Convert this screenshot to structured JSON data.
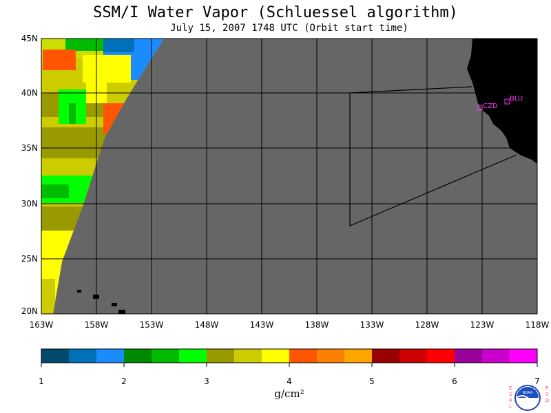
{
  "title": "SSM/I Water Vapor (Schluessel algorithm)",
  "subtitle": "July 15, 2007  1748 UTC  (Orbit start time)",
  "units": "g/cm²",
  "colors": {
    "no_data": "#666666",
    "land": "#000000",
    "grid": "#000000",
    "station": "#ff33ff"
  },
  "map": {
    "lon_labels": [
      "163W",
      "158W",
      "153W",
      "148W",
      "143W",
      "138W",
      "133W",
      "128W",
      "123W",
      "118W"
    ],
    "lat_labels": [
      "45N",
      "40N",
      "35N",
      "30N",
      "25N",
      "20N"
    ]
  },
  "stations": [
    {
      "label": "CZD"
    },
    {
      "label": "BLU"
    }
  ],
  "colorbar": {
    "tick_labels": [
      "1",
      "2",
      "3",
      "4",
      "5",
      "6",
      "7"
    ],
    "colors": [
      "#004a6b",
      "#0070b8",
      "#1a8cff",
      "#008800",
      "#00bb00",
      "#00ff00",
      "#999900",
      "#cccc00",
      "#ffff00",
      "#ff5500",
      "#ff7f00",
      "#ffa500",
      "#990000",
      "#cc0000",
      "#ff0000",
      "#990099",
      "#cc00cc",
      "#ff00ff"
    ]
  },
  "logo": {
    "left_text": "ESRL",
    "right_text": "PSD",
    "badge_text": "NOAA"
  }
}
